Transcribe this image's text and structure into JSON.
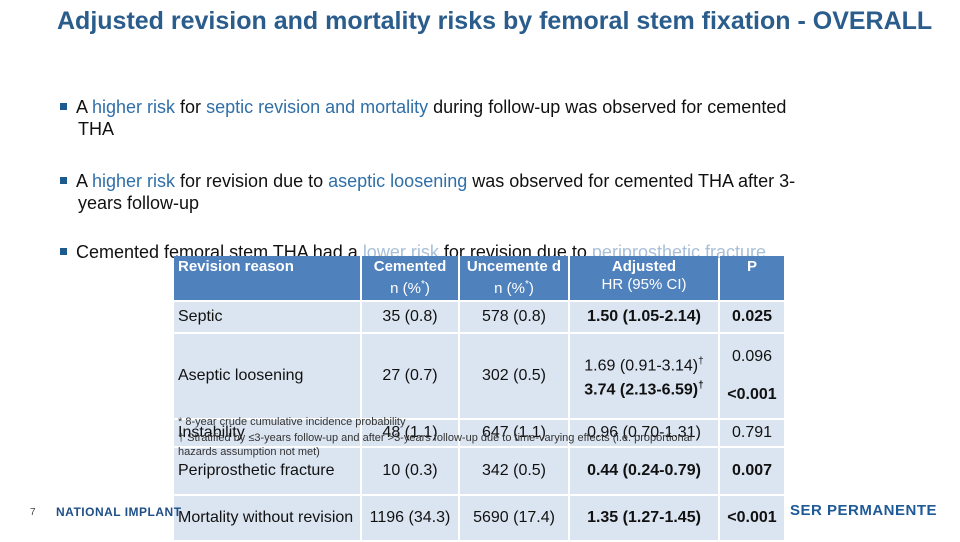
{
  "title": "Adjusted revision and mortality risks by femoral stem fixation - OVERALL",
  "bullets": {
    "b1": {
      "prefix": "A ",
      "hl1": "higher risk",
      "mid1": " for ",
      "hl2": "septic revision and mortality",
      "mid2": " during follow-up was observed for cemented",
      "line2": "THA"
    },
    "b2": {
      "prefix": "A ",
      "hl1": "higher risk",
      "mid1": " for revision due to ",
      "hl2": "aseptic loosening",
      "mid2": " was observed for cemented THA after 3-",
      "line2": "years follow-up"
    },
    "b3": {
      "prefix": "Cemented femoral stem THA had a ",
      "hl1": "lower risk",
      "mid1": " for revision due to ",
      "hl2": "periprosthetic fracture"
    }
  },
  "table": {
    "headers": {
      "reason": "Revision reason",
      "cemented": "Cemented",
      "cemented_sub": "n (%",
      "cemented_sup": "*",
      "cemented_close": ")",
      "uncemented": "Uncemente d",
      "uncemented_sub": "n (%",
      "uncemented_sup": "*",
      "uncemented_close": ")",
      "adjusted": "Adjusted",
      "adjusted_sub": "HR (95% CI)",
      "p": "P"
    },
    "rows": [
      {
        "reason": "Septic",
        "cemented": "35 (0.8)",
        "uncemented": "578 (0.8)",
        "hr": "1.50 (1.05-2.14)",
        "p": "0.025"
      },
      {
        "reason": "Aseptic loosening",
        "cemented": "27 (0.7)",
        "uncemented": "302 (0.5)",
        "hr_a": "1.69 (0.91-3.14)",
        "hr_a_sup": "†",
        "hr_b": "3.74 (2.13-6.59)",
        "hr_b_sup": "†",
        "p_a": "0.096",
        "p_b": "<0.001"
      },
      {
        "reason": "Instability",
        "cemented": "48 (1.1)",
        "uncemented": "647 (1.1)",
        "hr": "0.96 (0.70-1.31)",
        "p": "0.791"
      },
      {
        "reason": "Periprosthetic fracture",
        "cemented": "10 (0.3)",
        "uncemented": "342 (0.5)",
        "hr": "0.44 (0.24-0.79)",
        "p": "0.007"
      },
      {
        "reason": "Mortality without revision",
        "cemented": "1196 (34.3)",
        "uncemented": "5690 (17.4)",
        "hr": "1.35 (1.27-1.45)",
        "p": "<0.001"
      }
    ]
  },
  "footnotes": {
    "f1": "* 8-year crude cumulative incidence probability",
    "f2": "† Stratified by ≤3-years follow-up and after >3-years follow-up due to time-varying effects (i.e. proportional",
    "f3": "hazards assumption not met)"
  },
  "footer": {
    "page": "7",
    "left": "NATIONAL IMPLANT",
    "right": "SER PERMANENTE"
  }
}
